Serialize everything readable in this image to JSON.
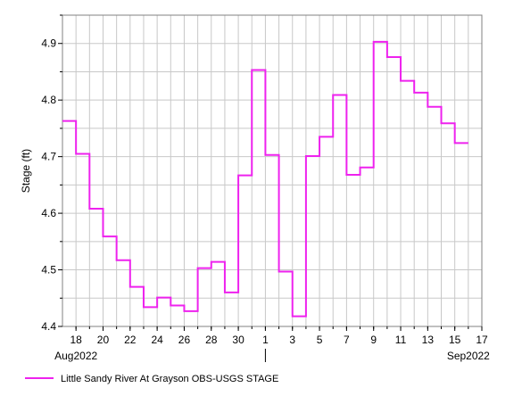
{
  "chart_data": {
    "type": "line",
    "step": true,
    "xlabel": "",
    "ylabel": "Stage (ft)",
    "ylim": [
      4.4,
      4.95
    ],
    "xlim": [
      "2022-08-17",
      "2022-09-17"
    ],
    "y_ticks": [
      4.4,
      4.5,
      4.6,
      4.7,
      4.8,
      4.9
    ],
    "y_tick_labels": [
      "4.4",
      "4.5",
      "4.6",
      "4.7",
      "4.8",
      "4.9"
    ],
    "x_ticks": [
      "2022-08-18",
      "2022-08-20",
      "2022-08-22",
      "2022-08-24",
      "2022-08-26",
      "2022-08-28",
      "2022-08-30",
      "2022-09-01",
      "2022-09-03",
      "2022-09-05",
      "2022-09-07",
      "2022-09-09",
      "2022-09-11",
      "2022-09-13",
      "2022-09-15",
      "2022-09-17"
    ],
    "x_tick_labels": [
      "18",
      "20",
      "22",
      "24",
      "26",
      "28",
      "30",
      "1",
      "3",
      "5",
      "7",
      "9",
      "11",
      "13",
      "15",
      "17"
    ],
    "month_labels": [
      {
        "date": "2022-08-18",
        "label": "Aug2022"
      },
      {
        "date": "2022-09-16",
        "label": "Sep2022"
      }
    ],
    "month_divider": "2022-09-01",
    "grid": true,
    "legend_position": "bottom-left",
    "series": [
      {
        "name": "Little Sandy River At Grayson OBS-USGS STAGE",
        "color": "#ee22ee",
        "x": [
          "2022-08-17",
          "2022-08-18",
          "2022-08-19",
          "2022-08-20",
          "2022-08-21",
          "2022-08-22",
          "2022-08-23",
          "2022-08-24",
          "2022-08-25",
          "2022-08-26",
          "2022-08-27",
          "2022-08-28",
          "2022-08-29",
          "2022-08-30",
          "2022-08-31",
          "2022-09-01",
          "2022-09-02",
          "2022-09-03",
          "2022-09-04",
          "2022-09-05",
          "2022-09-06",
          "2022-09-07",
          "2022-09-08",
          "2022-09-09",
          "2022-09-10",
          "2022-09-11",
          "2022-09-12",
          "2022-09-13",
          "2022-09-14",
          "2022-09-15",
          "2022-09-16"
        ],
        "y": [
          4.763,
          4.705,
          4.608,
          4.559,
          4.517,
          4.47,
          4.434,
          4.451,
          4.437,
          4.427,
          4.503,
          4.514,
          4.46,
          4.667,
          4.853,
          4.703,
          4.497,
          4.418,
          4.701,
          4.735,
          4.809,
          4.668,
          4.681,
          4.903,
          4.876,
          4.834,
          4.813,
          4.788,
          4.759,
          4.724,
          4.724
        ]
      }
    ]
  }
}
